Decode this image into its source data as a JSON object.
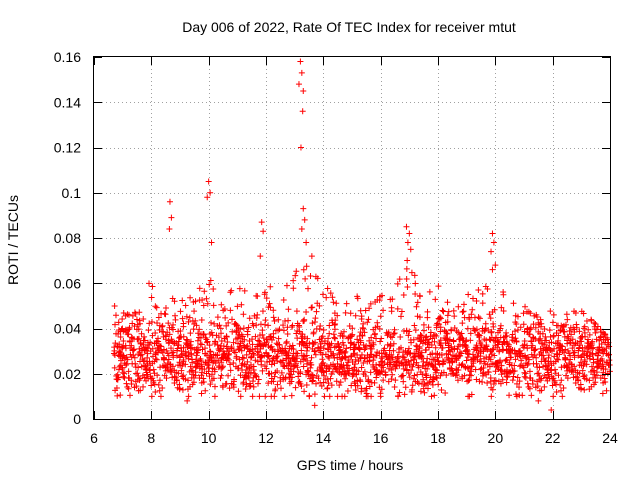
{
  "chart_data": {
    "type": "scatter",
    "title": "Day 006 of 2022, Rate Of TEC Index for receiver mtut",
    "xlabel": "GPS time / hours",
    "ylabel": "ROTI / TECUs",
    "xlim": [
      6,
      24
    ],
    "ylim": [
      0,
      0.16
    ],
    "xticks": [
      "6",
      "8",
      "10",
      "12",
      "14",
      "16",
      "18",
      "20",
      "22",
      "24"
    ],
    "yticks": [
      "0",
      "0.02",
      "0.04",
      "0.06",
      "0.08",
      "0.1",
      "0.12",
      "0.14",
      "0.16"
    ],
    "grid": true,
    "marker": "plus",
    "series_color": "#ff0000",
    "envelope": {
      "x_start": 6.7,
      "x_end": 24.0,
      "x_step": 0.04,
      "base_level": 0.027,
      "spread": 0.012,
      "upper_profile_x": [
        6.7,
        7.0,
        7.5,
        8.0,
        8.5,
        9.0,
        9.5,
        10.0,
        10.5,
        11.0,
        11.5,
        12.0,
        12.5,
        13.0,
        13.5,
        14.0,
        14.5,
        15.0,
        15.5,
        16.0,
        16.5,
        17.0,
        17.5,
        18.0,
        18.5,
        19.0,
        19.5,
        20.0,
        20.5,
        21.0,
        21.5,
        22.0,
        22.5,
        23.0,
        23.5,
        24.0
      ],
      "upper_profile_y": [
        0.05,
        0.047,
        0.05,
        0.063,
        0.057,
        0.053,
        0.055,
        0.067,
        0.062,
        0.058,
        0.057,
        0.062,
        0.058,
        0.065,
        0.068,
        0.06,
        0.055,
        0.056,
        0.053,
        0.055,
        0.06,
        0.073,
        0.055,
        0.06,
        0.052,
        0.055,
        0.058,
        0.062,
        0.055,
        0.05,
        0.048,
        0.048,
        0.05,
        0.048,
        0.042,
        0.035
      ]
    },
    "spikes": [
      {
        "x": 8.65,
        "y": 0.096
      },
      {
        "x": 8.7,
        "y": 0.089
      },
      {
        "x": 8.63,
        "y": 0.084
      },
      {
        "x": 10.0,
        "y": 0.105
      },
      {
        "x": 10.05,
        "y": 0.1
      },
      {
        "x": 9.95,
        "y": 0.098
      },
      {
        "x": 10.1,
        "y": 0.078
      },
      {
        "x": 11.85,
        "y": 0.087
      },
      {
        "x": 11.9,
        "y": 0.083
      },
      {
        "x": 11.8,
        "y": 0.072
      },
      {
        "x": 13.2,
        "y": 0.158
      },
      {
        "x": 13.25,
        "y": 0.153
      },
      {
        "x": 13.15,
        "y": 0.148
      },
      {
        "x": 13.3,
        "y": 0.145
      },
      {
        "x": 13.28,
        "y": 0.136
      },
      {
        "x": 13.22,
        "y": 0.12
      },
      {
        "x": 13.3,
        "y": 0.093
      },
      {
        "x": 13.35,
        "y": 0.088
      },
      {
        "x": 13.25,
        "y": 0.084
      },
      {
        "x": 13.4,
        "y": 0.078
      },
      {
        "x": 13.6,
        "y": 0.072
      },
      {
        "x": 16.9,
        "y": 0.085
      },
      {
        "x": 17.0,
        "y": 0.082
      },
      {
        "x": 16.95,
        "y": 0.078
      },
      {
        "x": 17.05,
        "y": 0.075
      },
      {
        "x": 19.9,
        "y": 0.082
      },
      {
        "x": 19.95,
        "y": 0.078
      },
      {
        "x": 19.85,
        "y": 0.074
      },
      {
        "x": 20.0,
        "y": 0.068
      },
      {
        "x": 19.9,
        "y": 0.066
      },
      {
        "x": 9.3,
        "y": 0.01
      },
      {
        "x": 9.25,
        "y": 0.008
      },
      {
        "x": 21.95,
        "y": 0.004
      },
      {
        "x": 21.5,
        "y": 0.008
      },
      {
        "x": 13.7,
        "y": 0.006
      }
    ]
  }
}
